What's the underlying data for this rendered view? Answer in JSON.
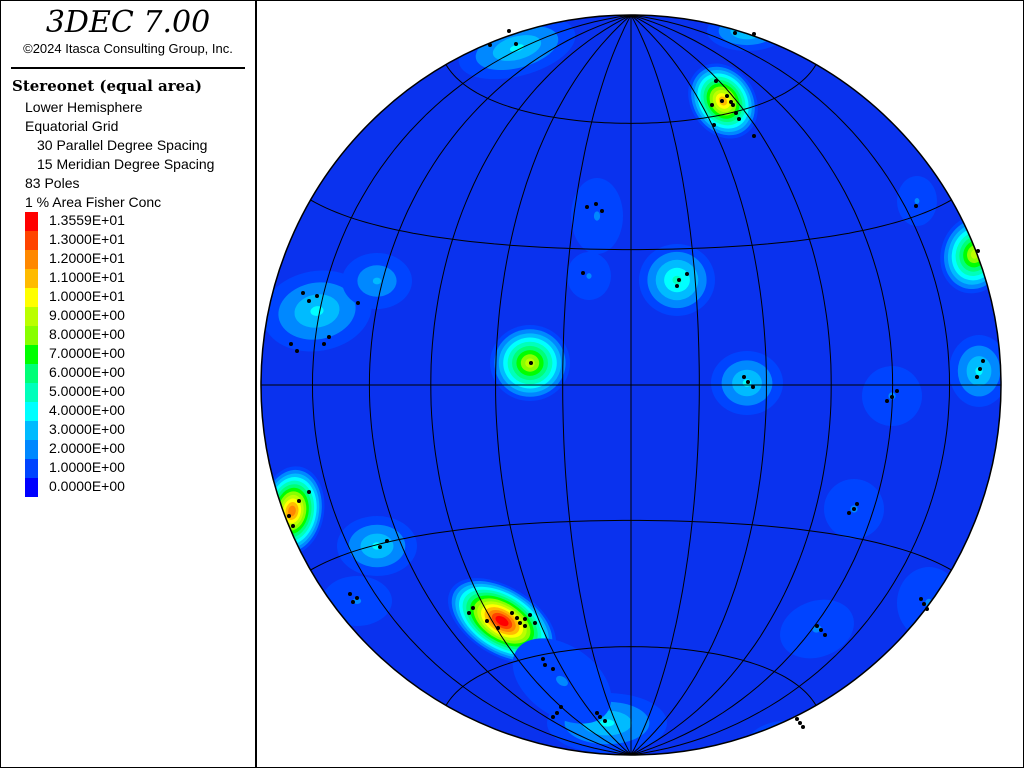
{
  "legend": {
    "app_title": "3DEC 7.00",
    "copyright": "©2024 Itasca Consulting Group, Inc.",
    "plot_title": "Stereonet (equal area)",
    "hemisphere": "Lower Hemisphere",
    "grid_type": "Equatorial Grid",
    "parallel_spacing": "30 Parallel Degree Spacing",
    "meridian_spacing": "15 Meridian Degree Spacing",
    "poles": "83 Poles",
    "conc_method": "1 % Area Fisher Conc",
    "scale": [
      {
        "label": "1.3559E+01",
        "color": "#ff0000"
      },
      {
        "label": "1.3000E+01",
        "color": "#ff4400"
      },
      {
        "label": "1.2000E+01",
        "color": "#ff8800"
      },
      {
        "label": "1.1000E+01",
        "color": "#ffbb00"
      },
      {
        "label": "1.0000E+01",
        "color": "#ffff00"
      },
      {
        "label": "9.0000E+00",
        "color": "#bbff00"
      },
      {
        "label": "8.0000E+00",
        "color": "#88ff00"
      },
      {
        "label": "7.0000E+00",
        "color": "#00ff00"
      },
      {
        "label": "6.0000E+00",
        "color": "#00ff77"
      },
      {
        "label": "5.0000E+00",
        "color": "#00ffbb"
      },
      {
        "label": "4.0000E+00",
        "color": "#00ffff"
      },
      {
        "label": "3.0000E+00",
        "color": "#00bbff"
      },
      {
        "label": "2.0000E+00",
        "color": "#0088ff"
      },
      {
        "label": "1.0000E+00",
        "color": "#0044ff"
      },
      {
        "label": "0.0000E+00",
        "color": "#0000ff"
      }
    ]
  },
  "stereonet": {
    "base_color": "#0a32ee",
    "grid_color": "#000000"
  }
}
